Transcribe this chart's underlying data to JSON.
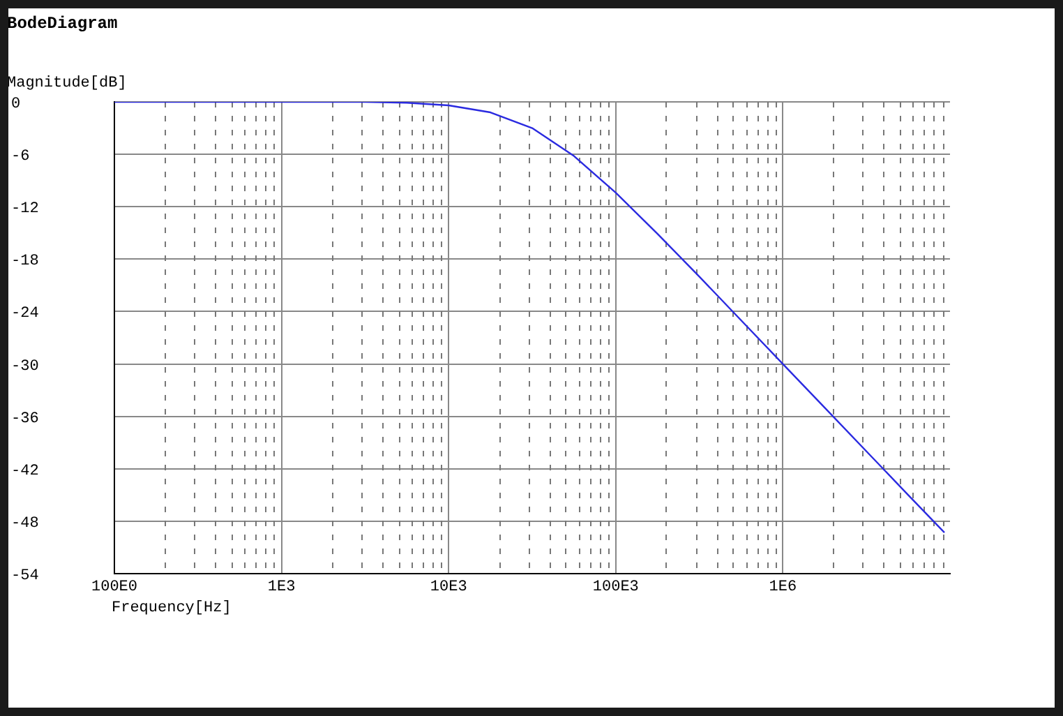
{
  "chart_data": {
    "type": "line",
    "title": "BodeDiagram",
    "xlabel": "Frequency[Hz]",
    "ylabel": "Magnitude[dB]",
    "log": "x",
    "grid": true,
    "legend": false,
    "marker": "none",
    "line_style": "solid",
    "xlim": [
      100,
      10000000
    ],
    "ylim": [
      -54,
      0
    ],
    "xticks": [
      {
        "value": 100,
        "label": "100E0"
      },
      {
        "value": 1000,
        "label": "1E3"
      },
      {
        "value": 10000,
        "label": "10E3"
      },
      {
        "value": 100000,
        "label": "100E3"
      },
      {
        "value": 1000000,
        "label": "1E6"
      }
    ],
    "yticks": [
      0,
      -6,
      -12,
      -18,
      -24,
      -30,
      -36,
      -42,
      -48,
      -54
    ],
    "x": [
      100,
      1000,
      3162,
      5623,
      10000,
      17783,
      31623,
      56234,
      100000,
      177828,
      316228,
      562341,
      1000000,
      1778279,
      3162278,
      5623413,
      9260000
    ],
    "series": [
      {
        "color": "#2a2ae0",
        "values": [
          0,
          0,
          0,
          -0.1,
          -0.4,
          -1.2,
          -3,
          -6.2,
          -10.4,
          -15.1,
          -20,
          -25,
          -30,
          -35,
          -40,
          -45,
          -49.3
        ]
      }
    ]
  }
}
